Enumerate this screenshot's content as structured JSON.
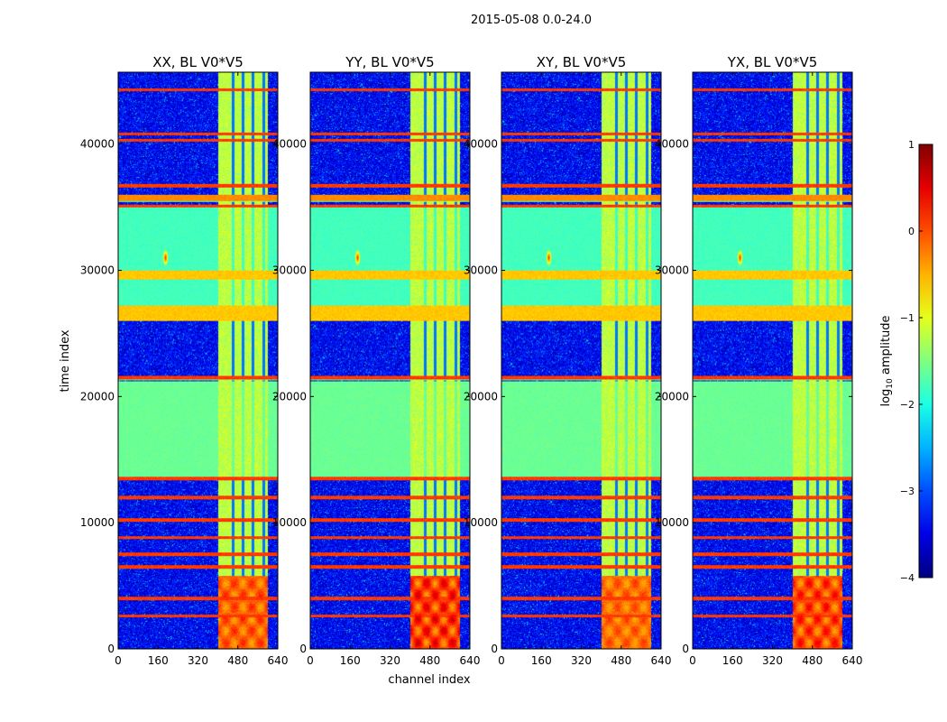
{
  "figure": {
    "suptitle": "2015-05-08 0.0-24.0"
  },
  "chart_data": {
    "type": "heatmap",
    "xlabel": "channel index",
    "ylabel": "time index",
    "xlim": [
      0,
      640
    ],
    "ylim": [
      0,
      45700
    ],
    "x_ticks": [
      0,
      160,
      320,
      480,
      640
    ],
    "x_tick_labels": [
      "0",
      "160",
      "320",
      "480",
      "640"
    ],
    "y_ticks": [
      0,
      10000,
      20000,
      30000,
      40000
    ],
    "y_tick_labels": [
      "0",
      "10000",
      "20000",
      "30000",
      "40000"
    ],
    "panels": [
      {
        "title": "XX, BL V0*V5",
        "pol": "XX",
        "burst_strength": 0.65
      },
      {
        "title": "YY, BL V0*V5",
        "pol": "YY",
        "burst_strength": 1.0
      },
      {
        "title": "XY, BL V0*V5",
        "pol": "XY",
        "burst_strength": 0.55
      },
      {
        "title": "YX, BL V0*V5",
        "pol": "YX",
        "burst_strength": 0.85
      }
    ],
    "rfi_channel_band": [
      400,
      600
    ],
    "rfi_channel_lines": [
      460,
      500,
      540,
      585
    ],
    "rfi_time_bands": [
      {
        "from": 26000,
        "to": 27200,
        "level": -0.6
      },
      {
        "from": 29300,
        "to": 30000,
        "level": -0.6
      },
      {
        "from": 35500,
        "to": 36000,
        "level": -0.3
      },
      {
        "from": 13700,
        "to": 21200,
        "level": -1.6
      },
      {
        "from": 27200,
        "to": 35200,
        "level": -1.8
      }
    ],
    "rfi_time_lines": [
      21500,
      13500,
      12000,
      10200,
      8800,
      7500,
      6500,
      4000,
      2600,
      40800,
      40300,
      44300,
      36700,
      35100
    ],
    "burst": {
      "channels": [
        400,
        600
      ],
      "time": [
        0,
        5800
      ]
    },
    "point_source": {
      "channel": 190,
      "time": 31000,
      "level": 0.3
    },
    "colorbar": {
      "label": "log10 amplitude",
      "range": [
        -4,
        1
      ],
      "ticks": [
        1,
        0,
        -1,
        -2,
        -3,
        -4
      ],
      "tick_labels": [
        "1",
        "0",
        "−1",
        "−2",
        "−3",
        "−4"
      ],
      "colormap": "jet"
    }
  }
}
